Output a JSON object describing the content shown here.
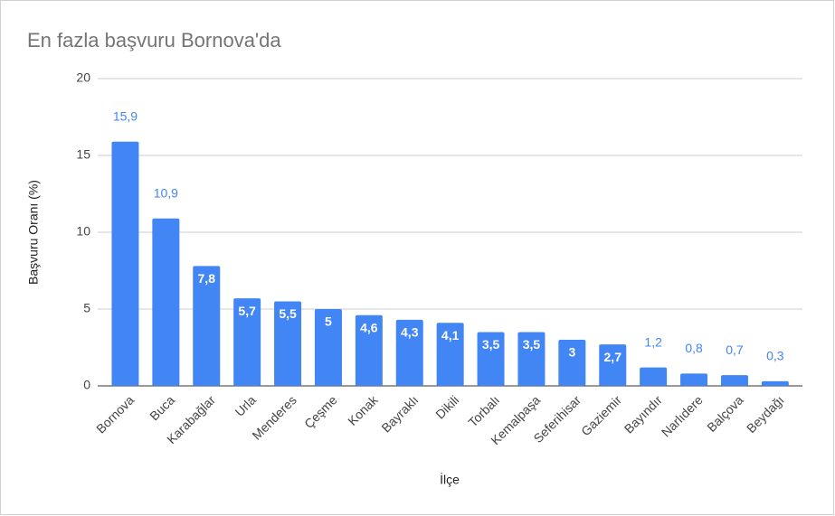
{
  "chart_data": {
    "type": "bar",
    "title": "En fazla başvuru Bornova'da",
    "x_label": "İlçe",
    "y_label": "Başvuru Oranı (%)",
    "categories": [
      "Bornova",
      "Buca",
      "Karabağlar",
      "Urla",
      "Menderes",
      "Çeşme",
      "Konak",
      "Bayraklı",
      "Dikili",
      "Torbalı",
      "Kemalpaşa",
      "Seferihisar",
      "Gaziemir",
      "Bayındır",
      "Narlıdere",
      "Balçova",
      "Beydağı"
    ],
    "values": [
      15.9,
      10.9,
      7.8,
      5.7,
      5.5,
      5,
      4.6,
      4.3,
      4.1,
      3.5,
      3.5,
      3,
      2.7,
      1.2,
      0.8,
      0.7,
      0.3
    ],
    "value_labels": [
      "15,9",
      "10,9",
      "7,8",
      "5,7",
      "5,5",
      "5",
      "4,6",
      "4,3",
      "4,1",
      "3,5",
      "3,5",
      "3",
      "2,7",
      "1,2",
      "0,8",
      "0,7",
      "0,3"
    ],
    "color": "#4285f4",
    "ylim": [
      0,
      20
    ],
    "yticks": [
      0,
      5,
      10,
      15,
      20
    ],
    "grid": true
  }
}
